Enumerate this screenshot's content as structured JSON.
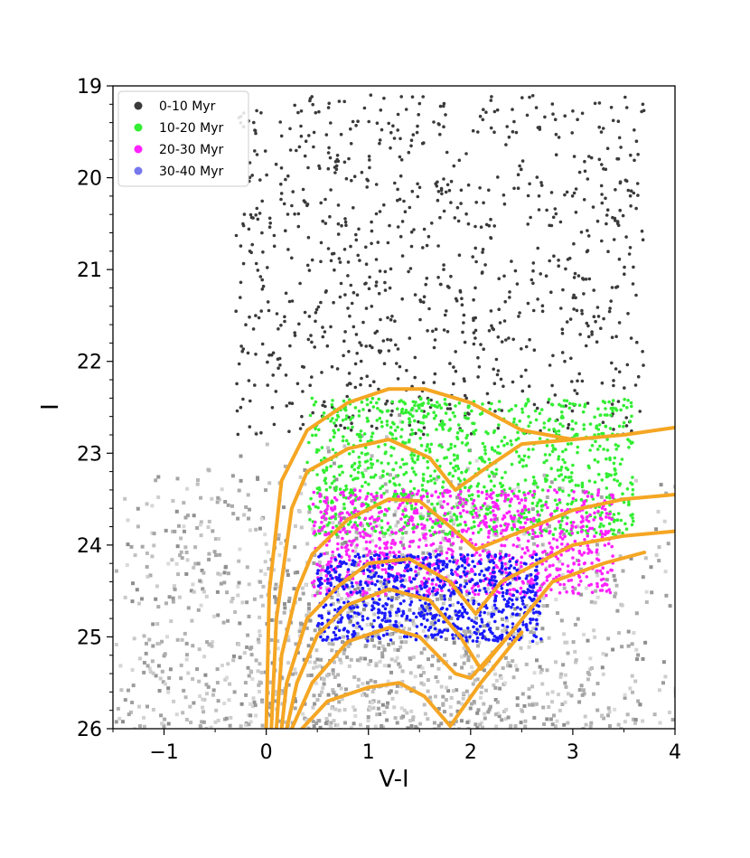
{
  "chart_data": {
    "type": "scatter",
    "title": "",
    "xlabel": "V-I",
    "ylabel": "I",
    "xlim": [
      -1.5,
      4
    ],
    "ylim": [
      26,
      19
    ],
    "y_inverted": true,
    "xticks": [
      "−1",
      "0",
      "1",
      "2",
      "3",
      "4"
    ],
    "xtick_values": [
      -1,
      0,
      1,
      2,
      3,
      4
    ],
    "yticks": [
      "19",
      "20",
      "21",
      "22",
      "23",
      "24",
      "25",
      "26"
    ],
    "ytick_values": [
      19,
      20,
      21,
      22,
      23,
      24,
      25,
      26
    ],
    "grid": false,
    "legend_position": "top-left",
    "series": [
      {
        "name": "0-10 Myr",
        "color": "#3a3a3a",
        "region": {
          "x": [
            -0.3,
            3.7
          ],
          "y": [
            19.1,
            22.8
          ]
        }
      },
      {
        "name": "10-20 Myr",
        "color": "#33ee33",
        "region": {
          "x": [
            0.4,
            3.6
          ],
          "y": [
            22.4,
            23.9
          ]
        }
      },
      {
        "name": "20-30 Myr",
        "color": "#ff22ff",
        "region": {
          "x": [
            0.45,
            3.4
          ],
          "y": [
            23.4,
            24.55
          ]
        }
      },
      {
        "name": "30-40 Myr",
        "color": "#1a1aff",
        "legend_color": "#7777ee",
        "region": {
          "x": [
            0.5,
            2.7
          ],
          "y": [
            24.1,
            25.05
          ]
        }
      }
    ],
    "background_density": {
      "color": "#9a9a9a",
      "x": [
        -1.5,
        4
      ],
      "y": [
        22.4,
        26
      ]
    },
    "isochrones": {
      "color": "#f5a623",
      "curves": [
        [
          [
            0.0,
            26.0
          ],
          [
            0.03,
            24.5
          ],
          [
            0.15,
            23.3
          ],
          [
            0.4,
            22.75
          ],
          [
            0.8,
            22.45
          ],
          [
            1.2,
            22.3
          ],
          [
            1.55,
            22.3
          ],
          [
            2.0,
            22.45
          ],
          [
            2.5,
            22.75
          ],
          [
            3.0,
            22.85
          ],
          [
            3.5,
            22.8
          ],
          [
            4.0,
            22.72
          ]
        ],
        [
          [
            0.05,
            26.0
          ],
          [
            0.1,
            24.8
          ],
          [
            0.25,
            23.6
          ],
          [
            0.4,
            23.2
          ],
          [
            0.8,
            22.95
          ],
          [
            1.2,
            22.85
          ],
          [
            1.6,
            23.05
          ],
          [
            1.85,
            23.4
          ],
          [
            2.1,
            23.2
          ],
          [
            2.5,
            22.9
          ],
          [
            3.0,
            22.85
          ]
        ],
        [
          [
            0.1,
            26.0
          ],
          [
            0.15,
            25.2
          ],
          [
            0.3,
            24.5
          ],
          [
            0.45,
            24.1
          ],
          [
            0.8,
            23.72
          ],
          [
            1.2,
            23.5
          ],
          [
            1.5,
            23.52
          ],
          [
            1.8,
            23.8
          ],
          [
            2.05,
            24.05
          ],
          [
            2.5,
            23.85
          ],
          [
            3.0,
            23.62
          ],
          [
            3.5,
            23.5
          ],
          [
            4.0,
            23.45
          ]
        ],
        [
          [
            0.15,
            26.0
          ],
          [
            0.2,
            25.5
          ],
          [
            0.4,
            24.8
          ],
          [
            0.7,
            24.45
          ],
          [
            1.0,
            24.2
          ],
          [
            1.4,
            24.15
          ],
          [
            1.8,
            24.4
          ],
          [
            2.05,
            24.75
          ],
          [
            2.3,
            24.4
          ],
          [
            3.0,
            24.0
          ],
          [
            3.5,
            23.9
          ],
          [
            4.0,
            23.85
          ]
        ],
        [
          [
            0.2,
            26.0
          ],
          [
            0.3,
            25.5
          ],
          [
            0.5,
            24.98
          ],
          [
            0.8,
            24.65
          ],
          [
            1.2,
            24.48
          ],
          [
            1.6,
            24.6
          ],
          [
            1.9,
            25.0
          ],
          [
            2.1,
            25.35
          ],
          [
            2.4,
            24.95
          ],
          [
            2.8,
            24.4
          ],
          [
            3.3,
            24.2
          ],
          [
            3.7,
            24.08
          ]
        ],
        [
          [
            0.25,
            26.0
          ],
          [
            0.45,
            25.5
          ],
          [
            0.8,
            25.05
          ],
          [
            1.2,
            24.9
          ],
          [
            1.5,
            25.0
          ],
          [
            1.85,
            25.4
          ],
          [
            2.0,
            25.45
          ],
          [
            2.4,
            24.95
          ]
        ],
        [
          [
            0.35,
            26.0
          ],
          [
            0.6,
            25.7
          ],
          [
            1.0,
            25.55
          ],
          [
            1.3,
            25.5
          ],
          [
            1.55,
            25.65
          ],
          [
            1.8,
            25.97
          ],
          [
            2.1,
            25.5
          ],
          [
            2.5,
            24.95
          ]
        ]
      ]
    }
  }
}
